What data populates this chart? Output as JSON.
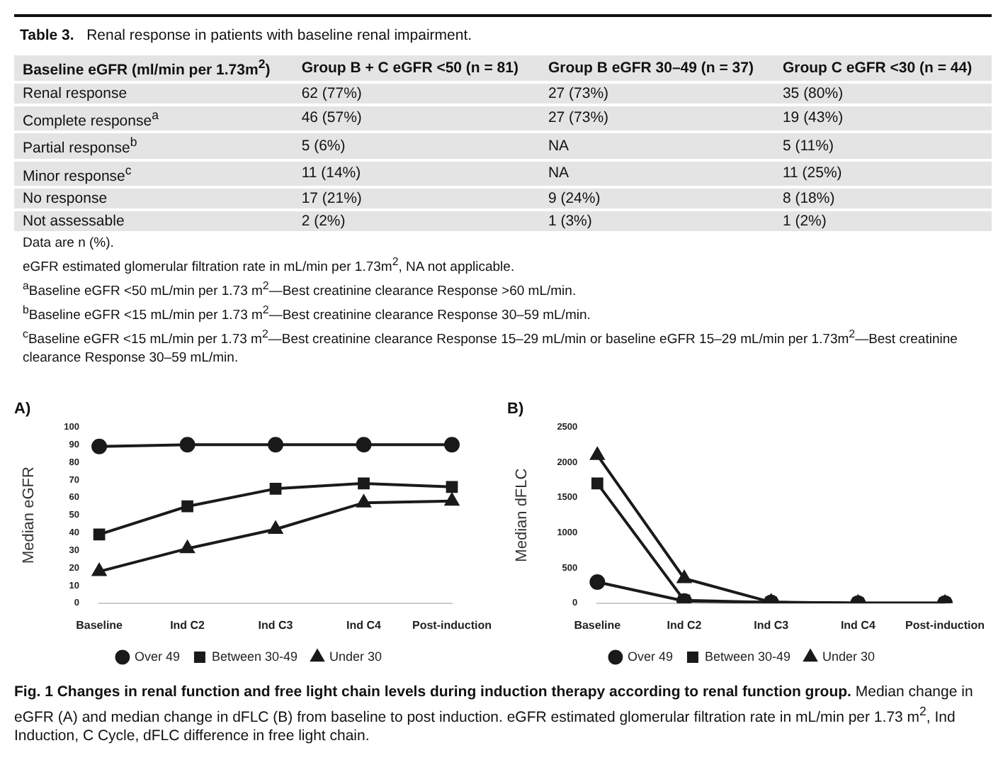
{
  "chart_data": [
    {
      "type": "other",
      "title": "Table 3.",
      "subtitle": "Renal response in patients with baseline renal impairment.",
      "annotations": [
        "Baseline eGFR (ml/min per 1.73m$^{2}$)\tGroup B + C eGFR <50 (n = 81)\tGroup B eGFR 30–49 (n = 37)\tGroup C eGFR <30 (n = 44)",
        "Renal response\t62 (77%)\t27 (73%)\t35 (80%)",
        "Complete response$^{a}$\t46 (57%)\t27 (73%)\t19 (43%)",
        "Partial response$^{b}$\t5 (6%)\tNA\t5 (11%)",
        "Minor response$^{c}$\t11 (14%)\tNA\t11 (25%)",
        "No response\t17 (21%)\t9 (24%)\t8 (18%)",
        "Not assessable\t2 (2%)\t1 (3%)\t1 (2%)",
        "Data are n (%).",
        "eGFR estimated glomerular filtration rate in mL/min per 1.73m$^{2}$, NA not applicable.",
        "$^{a}$Baseline eGFR <50 mL/min per 1.73 m$^{2}$—Best creatinine clearance Response >60 mL/min.",
        "$^{b}$Baseline eGFR <15 mL/min per 1.73 m$^{2}$—Best creatinine clearance Response 30–59 mL/min.",
        "$^{c}$Baseline eGFR <15 mL/min per 1.73 m$^{2}$—Best creatinine clearance Response 15–29 mL/min or baseline eGFR 15–29 mL/min per 1.73m$^{2}$—Best creatinine clearance Response 30–59 mL/min."
      ]
    },
    {
      "type": "line",
      "title": "A)",
      "ylabel": "Median eGFR",
      "categories": [
        "Baseline",
        "Ind C2",
        "Ind C3",
        "Ind C4",
        "Post-induction"
      ],
      "ylim": [
        0,
        100
      ],
      "yticks": [
        0,
        10,
        20,
        30,
        40,
        50,
        60,
        70,
        80,
        90,
        100
      ],
      "grid": false,
      "legend": "bottom",
      "series": [
        {
          "name": "Over 49",
          "color": "#1a1a1a",
          "marker": "circle",
          "values": [
            89,
            90,
            90,
            90,
            90
          ]
        },
        {
          "name": "Between 30-49",
          "color": "#1a1a1a",
          "marker": "square",
          "values": [
            39,
            55,
            65,
            68,
            66
          ]
        },
        {
          "name": "Under 30",
          "color": "#1a1a1a",
          "marker": "triangle",
          "values": [
            18,
            31,
            42,
            57,
            58
          ]
        }
      ]
    },
    {
      "type": "line",
      "title": "B)",
      "ylabel": "Median dFLC",
      "categories": [
        "Baseline",
        "Ind C2",
        "Ind C3",
        "Ind C4",
        "Post-induction"
      ],
      "ylim": [
        0,
        2500
      ],
      "yticks": [
        0,
        500,
        1000,
        1500,
        2000,
        2500
      ],
      "grid": false,
      "legend": "bottom",
      "series": [
        {
          "name": "Over 49",
          "color": "#1a1a1a",
          "marker": "circle",
          "values": [
            300,
            30,
            10,
            0,
            0
          ]
        },
        {
          "name": "Between 30-49",
          "color": "#1a1a1a",
          "marker": "square",
          "values": [
            1700,
            40,
            10,
            0,
            0
          ]
        },
        {
          "name": "Under 30",
          "color": "#1a1a1a",
          "marker": "triangle",
          "values": [
            2100,
            350,
            15,
            0,
            0
          ]
        }
      ]
    },
    {
      "type": "other",
      "title": "Fig. 1 Changes in renal function and free light chain levels during induction therapy according to renal function group.",
      "annotations": [
        "Median change in eGFR (A) and median change in dFLC (B) from baseline to post induction. eGFR estimated glomerular filtration rate in mL/min per 1.73 m$^{2}$, Ind Induction, C Cycle, dFLC difference in free light chain."
      ]
    }
  ]
}
